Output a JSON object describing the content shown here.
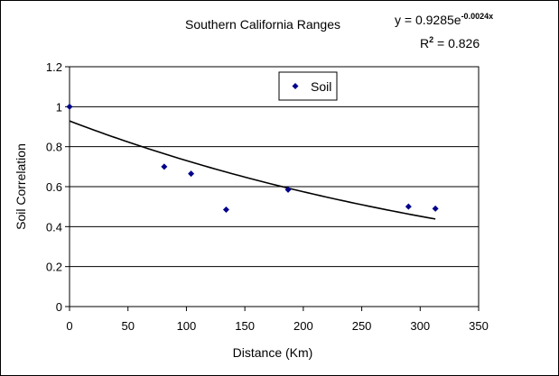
{
  "chart_data": {
    "type": "scatter",
    "title": "Southern California Ranges",
    "xlabel": "Distance (Km)",
    "ylabel": "Soil Correlation",
    "xlim": [
      0,
      350
    ],
    "ylim": [
      0,
      1.2
    ],
    "x_ticks": [
      "0",
      "50",
      "100",
      "150",
      "200",
      "250",
      "300",
      "350"
    ],
    "y_ticks": [
      "0",
      "0.2",
      "0.4",
      "0.6",
      "0.8",
      "1",
      "1.2"
    ],
    "grid": "horizontal",
    "legend_position": "top-center",
    "series": [
      {
        "name": "Soil",
        "color": "#00008B",
        "marker": "diamond",
        "points": [
          {
            "x": 0,
            "y": 1.0
          },
          {
            "x": 81,
            "y": 0.7
          },
          {
            "x": 104,
            "y": 0.665
          },
          {
            "x": 134,
            "y": 0.485
          },
          {
            "x": 187,
            "y": 0.585
          },
          {
            "x": 290,
            "y": 0.5
          },
          {
            "x": 313,
            "y": 0.49
          }
        ]
      }
    ],
    "trendline": {
      "type": "exponential",
      "a": 0.9285,
      "b": -0.0024,
      "x_range": [
        0,
        313
      ],
      "equation_base": "y = 0.9285e",
      "equation_exponent": "-0.0024x",
      "r2_base": "R",
      "r2_sup": "2",
      "r2_value": " = 0.826"
    }
  }
}
